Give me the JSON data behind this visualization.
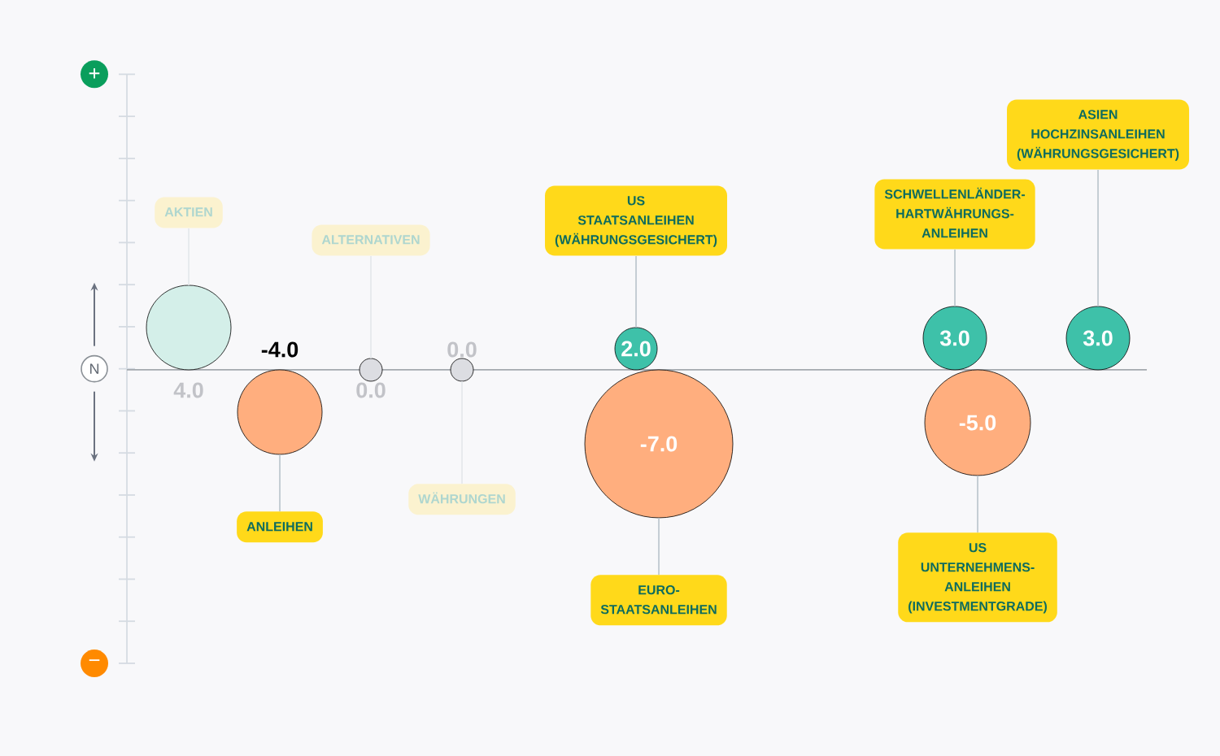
{
  "chart_data": {
    "type": "other",
    "categories": [
      "AKTIEN",
      "ANLEIHEN",
      "ALTERNATIVEN",
      "WÄHRUNGEN",
      "US STAATSANLEIHEN (WÄHRUNGSGESICHERT)",
      "EURO-STAATSANLEIHEN",
      "SCHWELLENLÄNDER-HARTWÄHRUNGS-ANLEIHEN",
      "US UNTERNEHMENS-ANLEIHEN (INVESTMENTGRADE)",
      "ASIEN HOCHZINSANLEIHEN (WÄHRUNGSGESICHERT)"
    ],
    "series": [
      {
        "values": [
          4.0,
          -4.0,
          0.0,
          0.0,
          null,
          null,
          null,
          null,
          null
        ],
        "colors": [
          "#d4efe9",
          "#ffae7e",
          "#dcdde2",
          "#dcdde2",
          null,
          null,
          null,
          null,
          null
        ],
        "value_labels": [
          "4.0",
          "-4.0",
          "0.0",
          "0.0",
          null,
          null,
          null,
          null,
          null
        ]
      },
      {
        "values": [
          null,
          null,
          null,
          null,
          2.0,
          -7.0,
          3.0,
          -5.0,
          3.0
        ],
        "colors": [
          null,
          null,
          null,
          null,
          "#3ec1a9",
          "#ffae7e",
          "#3ec1a9",
          "#ffae7e",
          "#3ec1a9"
        ],
        "value_labels": [
          null,
          null,
          null,
          null,
          "2.0",
          "-7.0",
          "3.0",
          "-5.0",
          "3.0"
        ]
      }
    ],
    "annotations": [
      "+",
      "N",
      "−"
    ]
  }
}
